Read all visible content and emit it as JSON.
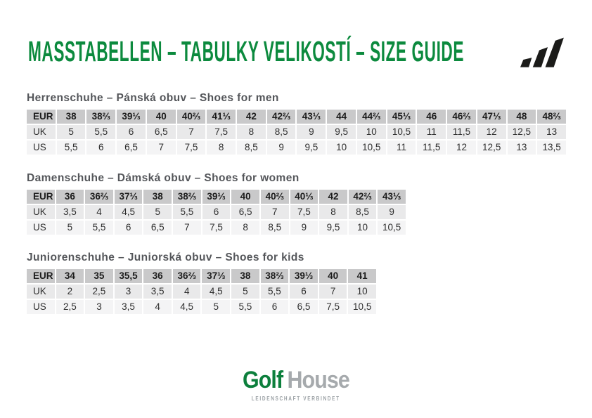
{
  "title": "MASSTABELLEN – TABULKY VELIKOSTÍ – SIZE GUIDE",
  "icons": {
    "brand": "adidas-logo"
  },
  "sections": [
    {
      "heading": "Herrenschuhe – Pánská obuv – Shoes for men",
      "rows": [
        {
          "label": "EUR",
          "values": [
            "38",
            "38⅔",
            "39⅓",
            "40",
            "40⅔",
            "41⅓",
            "42",
            "42⅔",
            "43⅓",
            "44",
            "44⅔",
            "45⅓",
            "46",
            "46⅔",
            "47⅓",
            "48",
            "48⅔"
          ]
        },
        {
          "label": "UK",
          "values": [
            "5",
            "5,5",
            "6",
            "6,5",
            "7",
            "7,5",
            "8",
            "8,5",
            "9",
            "9,5",
            "10",
            "10,5",
            "11",
            "11,5",
            "12",
            "12,5",
            "13"
          ]
        },
        {
          "label": "US",
          "values": [
            "5,5",
            "6",
            "6,5",
            "7",
            "7,5",
            "8",
            "8,5",
            "9",
            "9,5",
            "10",
            "10,5",
            "11",
            "11,5",
            "12",
            "12,5",
            "13",
            "13,5"
          ]
        }
      ]
    },
    {
      "heading": "Damenschuhe – Dámská obuv – Shoes for women",
      "rows": [
        {
          "label": "EUR",
          "values": [
            "36",
            "36⅔",
            "37⅓",
            "38",
            "38⅔",
            "39⅓",
            "40",
            "40⅔",
            "40⅓",
            "42",
            "42⅔",
            "43⅓"
          ]
        },
        {
          "label": "UK",
          "values": [
            "3,5",
            "4",
            "4,5",
            "5",
            "5,5",
            "6",
            "6,5",
            "7",
            "7,5",
            "8",
            "8,5",
            "9"
          ]
        },
        {
          "label": "US",
          "values": [
            "5",
            "5,5",
            "6",
            "6,5",
            "7",
            "7,5",
            "8",
            "8,5",
            "9",
            "9,5",
            "10",
            "10,5"
          ]
        }
      ]
    },
    {
      "heading": "Juniorenschuhe – Juniorská obuv – Shoes for kids",
      "rows": [
        {
          "label": "EUR",
          "values": [
            "34",
            "35",
            "35,5",
            "36",
            "36⅔",
            "37⅓",
            "38",
            "38⅔",
            "39⅓",
            "40",
            "41"
          ]
        },
        {
          "label": "UK",
          "values": [
            "2",
            "2,5",
            "3",
            "3,5",
            "4",
            "4,5",
            "5",
            "5,5",
            "6",
            "7",
            "10"
          ]
        },
        {
          "label": "US",
          "values": [
            "2,5",
            "3",
            "3,5",
            "4",
            "4,5",
            "5",
            "5,5",
            "6",
            "6,5",
            "7,5",
            "10,5"
          ]
        }
      ]
    }
  ],
  "footer": {
    "logo_part1": "Golf",
    "logo_part2": "House",
    "tagline": "LEIDENSCHAFT VERBINDET"
  },
  "colors": {
    "title_green": "#0c8a3e",
    "heading_gray": "#54565a",
    "header_row_bg": "#c9c9ca",
    "row1_bg": "#e9e9ea",
    "row2_bg": "#f4f4f5",
    "logo_green": "#0c7f3c",
    "logo_gray": "#a6aaad",
    "tagline_gray": "#9aa0a4"
  }
}
